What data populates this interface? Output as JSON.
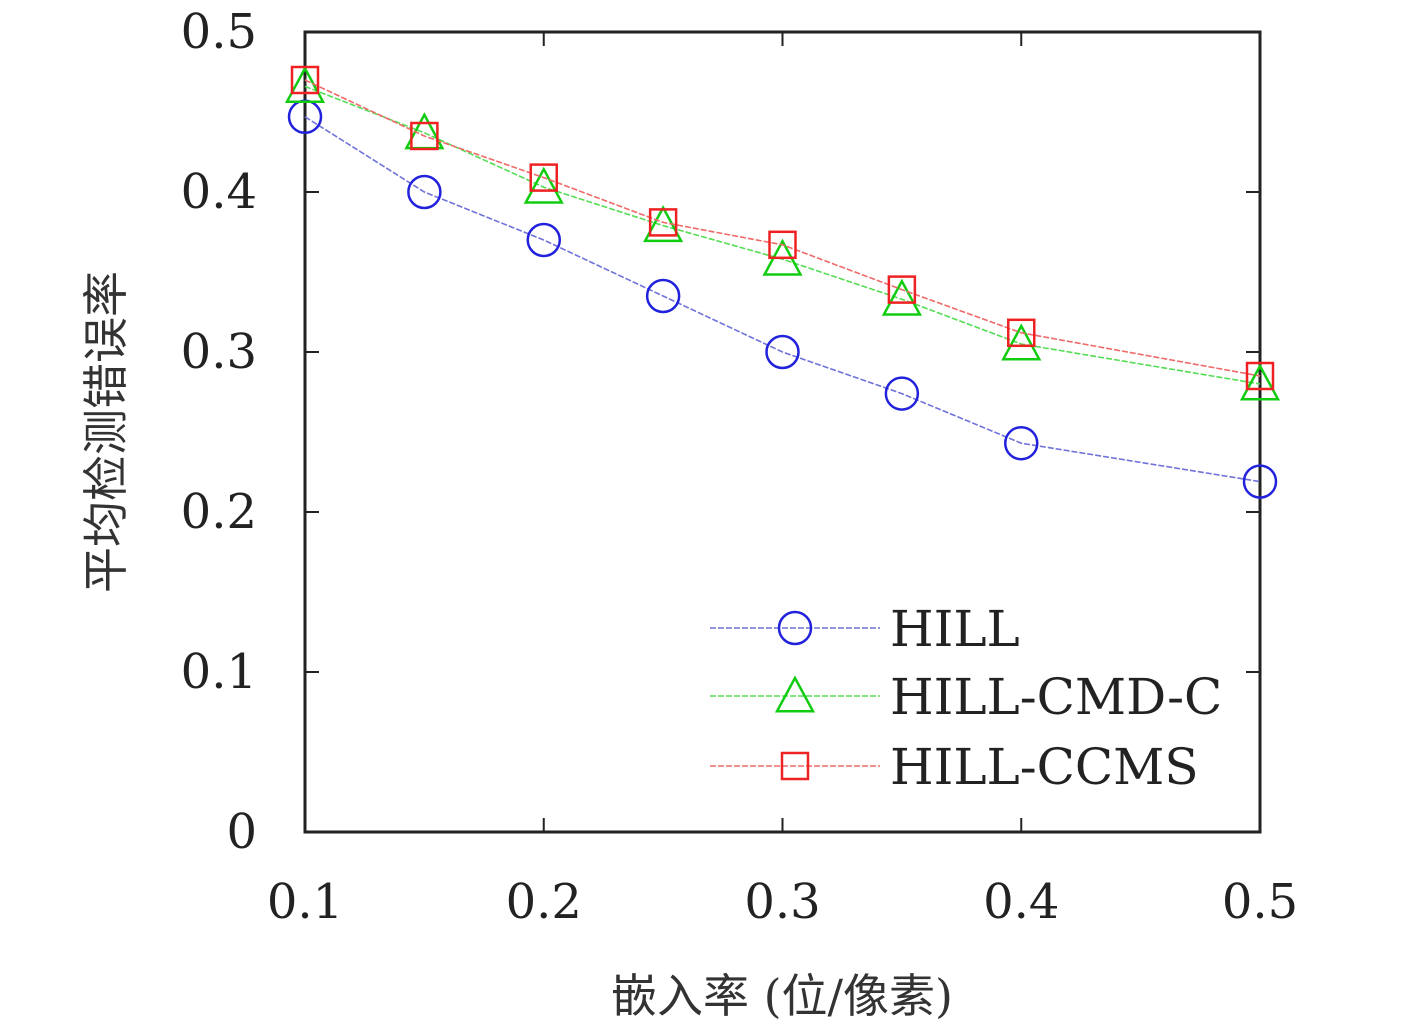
{
  "chart_data": {
    "type": "line",
    "xlabel": "嵌入率 (位/像素)",
    "ylabel": "平均检测错误率",
    "xlim": [
      0.1,
      0.5
    ],
    "ylim": [
      0,
      0.5
    ],
    "x_ticks": [
      "0.1",
      "0.2",
      "0.3",
      "0.4",
      "0.5"
    ],
    "y_ticks": [
      "0",
      "0.1",
      "0.2",
      "0.3",
      "0.4",
      "0.5"
    ],
    "grid": false,
    "legend_position": "bottom-right",
    "x": [
      0.1,
      0.15,
      0.2,
      0.25,
      0.3,
      0.35,
      0.4,
      0.5
    ],
    "series": [
      {
        "name": "HILL",
        "marker": "circle",
        "color": "#2222dd",
        "line_color": "#6f73d9",
        "values": [
          0.447,
          0.4,
          0.37,
          0.335,
          0.3,
          0.274,
          0.243,
          0.219
        ]
      },
      {
        "name": "HILL-CMD-C",
        "marker": "triangle",
        "color": "#11cc11",
        "line_color": "#55dd55",
        "values": [
          0.466,
          0.437,
          0.403,
          0.379,
          0.358,
          0.333,
          0.305,
          0.28
        ]
      },
      {
        "name": "HILL-CCMS",
        "marker": "square",
        "color": "#ee2222",
        "line_color": "#f06a6a",
        "values": [
          0.47,
          0.435,
          0.409,
          0.381,
          0.367,
          0.339,
          0.312,
          0.285
        ]
      }
    ]
  }
}
